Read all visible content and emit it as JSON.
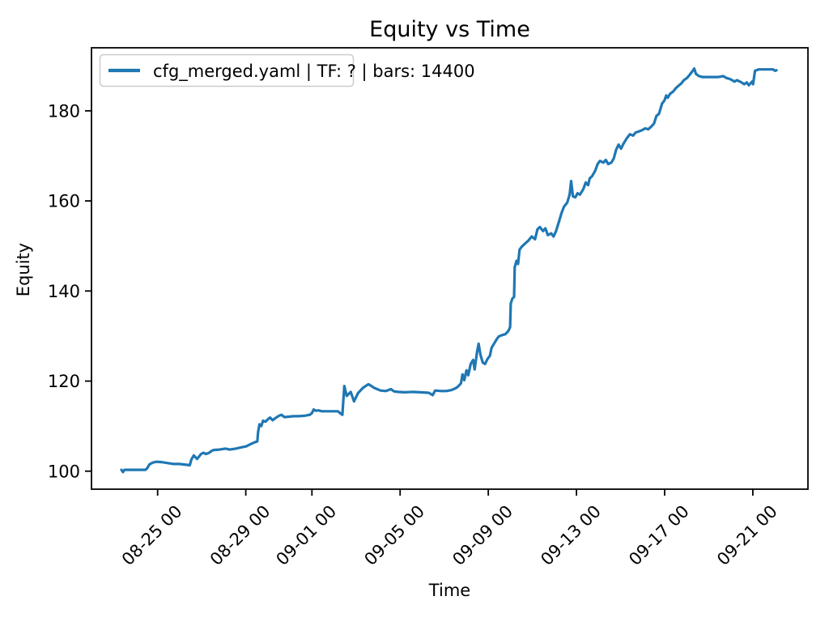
{
  "figure": {
    "title": "Equity vs Time",
    "background": "#ffffff"
  },
  "chart_data": {
    "type": "line",
    "title": "Equity vs Time",
    "xlabel": "Time",
    "ylabel": "Equity",
    "grid": false,
    "axis_color": "#000000",
    "legend": {
      "location": "upper left",
      "border_color": "#cccccc",
      "background": "#ffffff",
      "entries": [
        {
          "label": "cfg_merged.yaml | TF: ? | bars: 14400",
          "color": "#1f77b4"
        }
      ]
    },
    "x_axis": {
      "unit": "day offset (0 = 08-23 00:00)",
      "lim": [
        -1.0,
        31.5
      ],
      "tick_rotation_deg": 45,
      "ticks": [
        {
          "t": 2,
          "label": "08-25 00"
        },
        {
          "t": 6,
          "label": "08-29 00"
        },
        {
          "t": 9,
          "label": "09-01 00"
        },
        {
          "t": 13,
          "label": "09-05 00"
        },
        {
          "t": 17,
          "label": "09-09 00"
        },
        {
          "t": 21,
          "label": "09-13 00"
        },
        {
          "t": 25,
          "label": "09-17 00"
        },
        {
          "t": 29,
          "label": "09-21 00"
        }
      ]
    },
    "y_axis": {
      "lim": [
        96,
        194
      ],
      "ticks": [
        100,
        120,
        140,
        160,
        180
      ]
    },
    "series": [
      {
        "name": "cfg_merged.yaml | TF: ? | bars: 14400",
        "color": "#1f77b4",
        "line_width": 3.2,
        "points": [
          [
            0.36,
            100.3
          ],
          [
            0.43,
            99.8
          ],
          [
            0.5,
            100.3
          ],
          [
            1.45,
            100.3
          ],
          [
            1.52,
            100.6
          ],
          [
            1.63,
            101.5
          ],
          [
            1.78,
            101.9
          ],
          [
            1.96,
            102.1
          ],
          [
            2.18,
            102.0
          ],
          [
            2.44,
            101.8
          ],
          [
            2.73,
            101.6
          ],
          [
            2.99,
            101.6
          ],
          [
            3.35,
            101.4
          ],
          [
            3.46,
            101.3
          ],
          [
            3.53,
            102.6
          ],
          [
            3.64,
            103.5
          ],
          [
            3.79,
            102.7
          ],
          [
            3.97,
            103.8
          ],
          [
            4.08,
            104.1
          ],
          [
            4.19,
            103.8
          ],
          [
            4.34,
            104.1
          ],
          [
            4.45,
            104.5
          ],
          [
            4.55,
            104.7
          ],
          [
            4.81,
            104.8
          ],
          [
            5.07,
            105.0
          ],
          [
            5.28,
            104.8
          ],
          [
            5.54,
            105.0
          ],
          [
            5.8,
            105.3
          ],
          [
            6.01,
            105.5
          ],
          [
            6.3,
            106.2
          ],
          [
            6.45,
            106.5
          ],
          [
            6.52,
            106.6
          ],
          [
            6.56,
            108.8
          ],
          [
            6.62,
            110.4
          ],
          [
            6.7,
            110.0
          ],
          [
            6.78,
            111.2
          ],
          [
            6.9,
            111.0
          ],
          [
            7.0,
            111.5
          ],
          [
            7.1,
            111.9
          ],
          [
            7.22,
            111.3
          ],
          [
            7.35,
            111.8
          ],
          [
            7.5,
            112.3
          ],
          [
            7.62,
            112.5
          ],
          [
            7.75,
            112.0
          ],
          [
            7.95,
            112.1
          ],
          [
            8.15,
            112.2
          ],
          [
            8.4,
            112.2
          ],
          [
            8.65,
            112.3
          ],
          [
            8.9,
            112.5
          ],
          [
            9.0,
            112.9
          ],
          [
            9.08,
            113.7
          ],
          [
            9.18,
            113.4
          ],
          [
            9.3,
            113.5
          ],
          [
            9.45,
            113.3
          ],
          [
            9.7,
            113.3
          ],
          [
            9.95,
            113.3
          ],
          [
            10.18,
            113.3
          ],
          [
            10.3,
            112.8
          ],
          [
            10.38,
            112.5
          ],
          [
            10.47,
            118.9
          ],
          [
            10.58,
            116.7
          ],
          [
            10.76,
            117.6
          ],
          [
            10.91,
            115.5
          ],
          [
            11.09,
            117.3
          ],
          [
            11.31,
            118.5
          ],
          [
            11.56,
            119.3
          ],
          [
            11.67,
            119.0
          ],
          [
            11.82,
            118.5
          ],
          [
            12.11,
            117.9
          ],
          [
            12.36,
            117.8
          ],
          [
            12.58,
            118.2
          ],
          [
            12.73,
            117.7
          ],
          [
            12.91,
            117.6
          ],
          [
            13.2,
            117.5
          ],
          [
            13.57,
            117.6
          ],
          [
            13.93,
            117.5
          ],
          [
            14.3,
            117.4
          ],
          [
            14.48,
            116.9
          ],
          [
            14.59,
            117.9
          ],
          [
            14.85,
            117.8
          ],
          [
            15.1,
            117.8
          ],
          [
            15.32,
            118.0
          ],
          [
            15.47,
            118.3
          ],
          [
            15.58,
            118.6
          ],
          [
            15.65,
            118.9
          ],
          [
            15.76,
            119.5
          ],
          [
            15.83,
            121.5
          ],
          [
            15.91,
            120.2
          ],
          [
            16.01,
            122.4
          ],
          [
            16.09,
            121.3
          ],
          [
            16.2,
            123.8
          ],
          [
            16.31,
            124.7
          ],
          [
            16.38,
            122.6
          ],
          [
            16.49,
            126.5
          ],
          [
            16.56,
            128.3
          ],
          [
            16.64,
            125.9
          ],
          [
            16.75,
            124.1
          ],
          [
            16.85,
            123.8
          ],
          [
            16.96,
            124.9
          ],
          [
            17.07,
            125.6
          ],
          [
            17.15,
            127.4
          ],
          [
            17.26,
            128.3
          ],
          [
            17.37,
            129.2
          ],
          [
            17.47,
            129.9
          ],
          [
            17.62,
            130.2
          ],
          [
            17.77,
            130.4
          ],
          [
            17.91,
            131.1
          ],
          [
            17.99,
            132.0
          ],
          [
            18.02,
            137.2
          ],
          [
            18.09,
            138.3
          ],
          [
            18.17,
            138.7
          ],
          [
            18.2,
            145.3
          ],
          [
            18.28,
            146.7
          ],
          [
            18.35,
            146.0
          ],
          [
            18.42,
            149.2
          ],
          [
            18.53,
            149.9
          ],
          [
            18.68,
            150.6
          ],
          [
            18.82,
            151.2
          ],
          [
            18.97,
            152.1
          ],
          [
            19.12,
            151.5
          ],
          [
            19.23,
            153.7
          ],
          [
            19.34,
            154.2
          ],
          [
            19.48,
            153.3
          ],
          [
            19.59,
            153.9
          ],
          [
            19.7,
            152.4
          ],
          [
            19.85,
            152.8
          ],
          [
            19.96,
            152.1
          ],
          [
            20.07,
            153.3
          ],
          [
            20.21,
            155.5
          ],
          [
            20.32,
            157.3
          ],
          [
            20.43,
            158.7
          ],
          [
            20.58,
            159.6
          ],
          [
            20.69,
            161.4
          ],
          [
            20.76,
            164.4
          ],
          [
            20.84,
            161.0
          ],
          [
            20.95,
            160.8
          ],
          [
            21.05,
            161.7
          ],
          [
            21.16,
            161.4
          ],
          [
            21.31,
            162.6
          ],
          [
            21.42,
            164.1
          ],
          [
            21.53,
            163.5
          ],
          [
            21.6,
            165.0
          ],
          [
            21.71,
            165.5
          ],
          [
            21.85,
            166.7
          ],
          [
            21.96,
            168.2
          ],
          [
            22.07,
            168.9
          ],
          [
            22.22,
            168.5
          ],
          [
            22.33,
            169.1
          ],
          [
            22.44,
            168.2
          ],
          [
            22.58,
            168.5
          ],
          [
            22.69,
            169.4
          ],
          [
            22.8,
            171.4
          ],
          [
            22.91,
            172.5
          ],
          [
            23.02,
            171.6
          ],
          [
            23.13,
            172.7
          ],
          [
            23.28,
            173.9
          ],
          [
            23.42,
            174.8
          ],
          [
            23.57,
            174.5
          ],
          [
            23.68,
            175.2
          ],
          [
            23.82,
            175.4
          ],
          [
            23.97,
            175.7
          ],
          [
            24.12,
            176.1
          ],
          [
            24.26,
            175.9
          ],
          [
            24.41,
            176.6
          ],
          [
            24.52,
            177.2
          ],
          [
            24.63,
            178.9
          ],
          [
            24.74,
            179.3
          ],
          [
            24.81,
            180.4
          ],
          [
            24.88,
            181.6
          ],
          [
            24.99,
            182.3
          ],
          [
            25.07,
            183.4
          ],
          [
            25.14,
            182.9
          ],
          [
            25.25,
            183.8
          ],
          [
            25.39,
            184.3
          ],
          [
            25.5,
            185.0
          ],
          [
            25.61,
            185.5
          ],
          [
            25.76,
            186.1
          ],
          [
            25.87,
            186.8
          ],
          [
            26.01,
            187.3
          ],
          [
            26.12,
            187.9
          ],
          [
            26.23,
            188.6
          ],
          [
            26.34,
            189.4
          ],
          [
            26.42,
            188.2
          ],
          [
            26.56,
            187.7
          ],
          [
            26.71,
            187.5
          ],
          [
            27.07,
            187.5
          ],
          [
            27.44,
            187.5
          ],
          [
            27.66,
            187.7
          ],
          [
            27.8,
            187.3
          ],
          [
            27.95,
            187.1
          ],
          [
            28.06,
            186.8
          ],
          [
            28.17,
            186.5
          ],
          [
            28.28,
            186.8
          ],
          [
            28.46,
            186.4
          ],
          [
            28.61,
            185.9
          ],
          [
            28.72,
            186.3
          ],
          [
            28.82,
            185.7
          ],
          [
            28.97,
            186.5
          ],
          [
            29.01,
            185.9
          ],
          [
            29.1,
            188.9
          ],
          [
            29.26,
            189.2
          ],
          [
            29.52,
            189.2
          ],
          [
            29.74,
            189.2
          ],
          [
            29.92,
            189.2
          ],
          [
            30.0,
            188.9
          ],
          [
            30.07,
            189.0
          ]
        ]
      }
    ]
  }
}
